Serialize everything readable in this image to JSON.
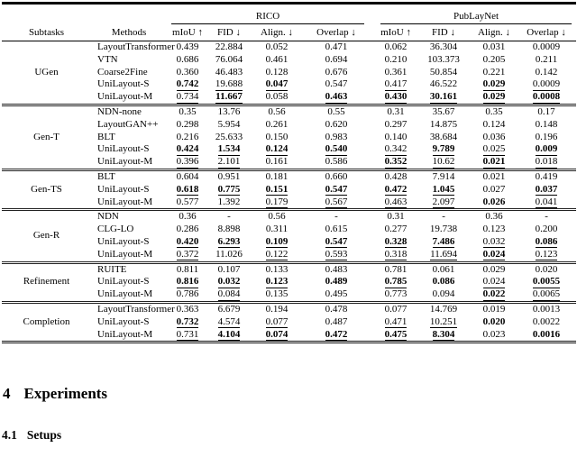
{
  "table": {
    "group_headers": [
      {
        "label": "RICO"
      },
      {
        "label": "PubLayNet"
      }
    ],
    "col_headers": {
      "subtasks": "Subtasks",
      "methods": "Methods"
    },
    "metric_headers": [
      "mIoU ↑",
      "FID ↓",
      "Align. ↓",
      "Overlap ↓",
      "mIoU ↑",
      "FID ↓",
      "Align. ↓",
      "Overlap ↓"
    ],
    "sections": [
      {
        "subtask": "UGen",
        "rows": [
          {
            "method": "LayoutTransformer",
            "values": [
              "0.439",
              "22.884",
              "0.052",
              "0.471",
              "0.062",
              "36.304",
              "0.031",
              "0.0009"
            ],
            "fmt": [
              "",
              "",
              "",
              "",
              "",
              "",
              "",
              ""
            ]
          },
          {
            "method": "VTN",
            "values": [
              "0.686",
              "76.064",
              "0.461",
              "0.694",
              "0.210",
              "103.373",
              "0.205",
              "0.211"
            ],
            "fmt": [
              "",
              "",
              "",
              "",
              "",
              "",
              "",
              ""
            ]
          },
          {
            "method": "Coarse2Fine",
            "values": [
              "0.360",
              "46.483",
              "0.128",
              "0.676",
              "0.361",
              "50.854",
              "0.221",
              "0.142"
            ],
            "fmt": [
              "",
              "",
              "",
              "",
              "",
              "",
              "",
              ""
            ]
          },
          {
            "method": "UniLayout-S",
            "values": [
              "0.742",
              "19.688",
              "0.047",
              "0.547",
              "0.417",
              "46.522",
              "0.029",
              "0.0009"
            ],
            "fmt": [
              "bu",
              "u",
              "bu",
              "",
              "u",
              "",
              "bu",
              "u"
            ]
          },
          {
            "method": "UniLayout-M",
            "values": [
              "0.734",
              "11.667",
              "0.058",
              "0.463",
              "0.430",
              "30.161",
              "0.029",
              "0.0008"
            ],
            "fmt": [
              "u",
              "bu",
              "",
              "bu",
              "bu",
              "bu",
              "bu",
              "bu"
            ]
          }
        ]
      },
      {
        "subtask": "Gen-T",
        "rows": [
          {
            "method": "NDN-none",
            "values": [
              "0.35",
              "13.76",
              "0.56",
              "0.55",
              "0.31",
              "35.67",
              "0.35",
              "0.17"
            ],
            "fmt": [
              "",
              "",
              "",
              "",
              "",
              "",
              "",
              ""
            ]
          },
          {
            "method": "LayoutGAN++",
            "values": [
              "0.298",
              "5.954",
              "0.261",
              "0.620",
              "0.297",
              "14.875",
              "0.124",
              "0.148"
            ],
            "fmt": [
              "",
              "",
              "",
              "",
              "",
              "",
              "",
              ""
            ]
          },
          {
            "method": "BLT",
            "values": [
              "0.216",
              "25.633",
              "0.150",
              "0.983",
              "0.140",
              "38.684",
              "0.036",
              "0.196"
            ],
            "fmt": [
              "",
              "",
              "",
              "",
              "",
              "",
              "",
              ""
            ]
          },
          {
            "method": "UniLayout-S",
            "values": [
              "0.424",
              "1.534",
              "0.124",
              "0.540",
              "0.342",
              "9.789",
              "0.025",
              "0.009"
            ],
            "fmt": [
              "bu",
              "bu",
              "bu",
              "bu",
              "u",
              "bu",
              "u",
              "bu"
            ]
          },
          {
            "method": "UniLayout-M",
            "values": [
              "0.396",
              "2.101",
              "0.161",
              "0.586",
              "0.352",
              "10.62",
              "0.021",
              "0.018"
            ],
            "fmt": [
              "u",
              "u",
              "",
              "",
              "bu",
              "u",
              "bu",
              "u"
            ]
          }
        ]
      },
      {
        "subtask": "Gen-TS",
        "rows": [
          {
            "method": "BLT",
            "values": [
              "0.604",
              "0.951",
              "0.181",
              "0.660",
              "0.428",
              "7.914",
              "0.021",
              "0.419"
            ],
            "fmt": [
              "",
              "",
              "",
              "",
              "",
              "",
              "",
              ""
            ]
          },
          {
            "method": "UniLayout-S",
            "values": [
              "0.618",
              "0.775",
              "0.151",
              "0.547",
              "0.472",
              "1.045",
              "0.027",
              "0.037"
            ],
            "fmt": [
              "bu",
              "bu",
              "bu",
              "bu",
              "bu",
              "bu",
              "",
              "bu"
            ]
          },
          {
            "method": "UniLayout-M",
            "values": [
              "0.577",
              "1.392",
              "0.179",
              "0.567",
              "0.463",
              "2.097",
              "0.026",
              "0.041"
            ],
            "fmt": [
              "",
              "",
              "u",
              "u",
              "u",
              "u",
              "b",
              "u"
            ]
          }
        ]
      },
      {
        "subtask": "Gen-R",
        "rows": [
          {
            "method": "NDN",
            "values": [
              "0.36",
              "-",
              "0.56",
              "-",
              "0.31",
              "-",
              "0.36",
              "-"
            ],
            "fmt": [
              "",
              "",
              "",
              "",
              "",
              "",
              "",
              ""
            ]
          },
          {
            "method": "CLG-LO",
            "values": [
              "0.286",
              "8.898",
              "0.311",
              "0.615",
              "0.277",
              "19.738",
              "0.123",
              "0.200"
            ],
            "fmt": [
              "",
              "",
              "",
              "",
              "",
              "",
              "",
              ""
            ]
          },
          {
            "method": "UniLayout-S",
            "values": [
              "0.420",
              "6.293",
              "0.109",
              "0.547",
              "0.328",
              "7.486",
              "0.032",
              "0.086"
            ],
            "fmt": [
              "bu",
              "bu",
              "bu",
              "bu",
              "bu",
              "bu",
              "u",
              "bu"
            ]
          },
          {
            "method": "UniLayout-M",
            "values": [
              "0.372",
              "11.026",
              "0.122",
              "0.593",
              "0.318",
              "11.694",
              "0.024",
              "0.123"
            ],
            "fmt": [
              "u",
              "",
              "u",
              "u",
              "u",
              "u",
              "bu",
              "u"
            ]
          }
        ]
      },
      {
        "subtask": "Refinement",
        "rows": [
          {
            "method": "RUITE",
            "values": [
              "0.811",
              "0.107",
              "0.133",
              "0.483",
              "0.781",
              "0.061",
              "0.029",
              "0.020"
            ],
            "fmt": [
              "",
              "",
              "",
              "",
              "",
              "",
              "",
              ""
            ]
          },
          {
            "method": "UniLayout-S",
            "values": [
              "0.816",
              "0.032",
              "0.123",
              "0.489",
              "0.785",
              "0.086",
              "0.024",
              "0.0055"
            ],
            "fmt": [
              "bu",
              "bu",
              "bu",
              "b",
              "bu",
              "b",
              "u",
              "bu"
            ]
          },
          {
            "method": "UniLayout-M",
            "values": [
              "0.786",
              "0.084",
              "0.135",
              "0.495",
              "0.773",
              "0.094",
              "0.022",
              "0.0065"
            ],
            "fmt": [
              "",
              "u",
              "",
              "",
              "",
              "",
              "bu",
              "u"
            ]
          }
        ]
      },
      {
        "subtask": "Completion",
        "rows": [
          {
            "method": "LayoutTransformer",
            "values": [
              "0.363",
              "6.679",
              "0.194",
              "0.478",
              "0.077",
              "14.769",
              "0.019",
              "0.0013"
            ],
            "fmt": [
              "",
              "",
              "",
              "",
              "",
              "",
              "",
              ""
            ]
          },
          {
            "method": "UniLayout-S",
            "values": [
              "0.732",
              "4.574",
              "0.077",
              "0.487",
              "0.471",
              "10.251",
              "0.020",
              "0.0022"
            ],
            "fmt": [
              "bu",
              "u",
              "u",
              "",
              "u",
              "u",
              "b",
              ""
            ]
          },
          {
            "method": "UniLayout-M",
            "values": [
              "0.731",
              "4.104",
              "0.074",
              "0.472",
              "0.475",
              "8.304",
              "0.023",
              "0.0016"
            ],
            "fmt": [
              "u",
              "bu",
              "bu",
              "bu",
              "bu",
              "bu",
              "",
              "b"
            ]
          }
        ]
      }
    ]
  },
  "headings": {
    "section_number": "4",
    "section_title": "Experiments",
    "subsection_number": "4.1",
    "subsection_title": "Setups"
  },
  "colors": {
    "text": "#000000",
    "background": "#ffffff",
    "rule": "#000000"
  }
}
